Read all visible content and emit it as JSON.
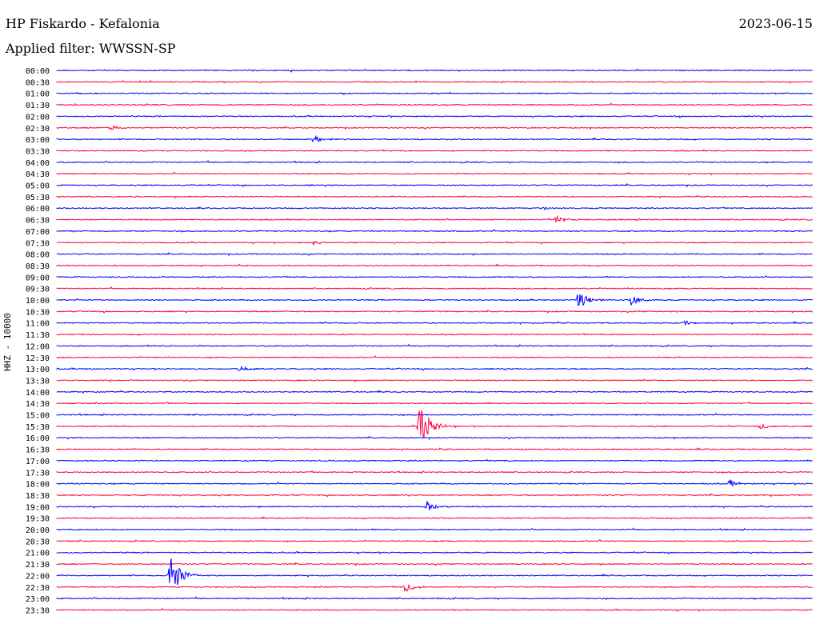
{
  "header": {
    "station": "HP Fiskardo - Kefalonia",
    "date": "2023-06-15",
    "filter": "Applied filter: WWSSN-SP"
  },
  "chart_data": {
    "type": "line",
    "title": "HP Fiskardo - Kefalonia",
    "ylabel": "HHZ - 10000",
    "line_colors": [
      "#0000ff",
      "#ff0040"
    ],
    "row_times": [
      "00:00",
      "00:30",
      "01:00",
      "01:30",
      "02:00",
      "02:30",
      "03:00",
      "03:30",
      "04:00",
      "04:30",
      "05:00",
      "05:30",
      "06:00",
      "06:30",
      "07:00",
      "07:30",
      "08:00",
      "08:30",
      "09:00",
      "09:30",
      "10:00",
      "10:30",
      "11:00",
      "11:30",
      "12:00",
      "12:30",
      "13:00",
      "13:30",
      "14:00",
      "14:30",
      "15:00",
      "15:30",
      "16:00",
      "16:30",
      "17:00",
      "17:30",
      "18:00",
      "18:30",
      "19:00",
      "19:30",
      "20:00",
      "20:30",
      "21:00",
      "21:30",
      "22:00",
      "22:30",
      "23:00",
      "23:30"
    ],
    "events": [
      {
        "row": "15:30",
        "time_frac": 0.48,
        "amplitude": 35
      },
      {
        "row": "22:00",
        "time_frac": 0.15,
        "amplitude": 35
      },
      {
        "row": "10:00",
        "time_frac": 0.69,
        "amplitude": 12
      },
      {
        "row": "10:00",
        "time_frac": 0.76,
        "amplitude": 7
      },
      {
        "row": "18:00",
        "time_frac": 0.89,
        "amplitude": 5
      },
      {
        "row": "19:00",
        "time_frac": 0.49,
        "amplitude": 7
      },
      {
        "row": "22:30",
        "time_frac": 0.46,
        "amplitude": 8
      },
      {
        "row": "13:00",
        "time_frac": 0.24,
        "amplitude": 5
      },
      {
        "row": "15:30",
        "time_frac": 0.93,
        "amplitude": 4
      },
      {
        "row": "06:30",
        "time_frac": 0.66,
        "amplitude": 5
      },
      {
        "row": "03:00",
        "time_frac": 0.34,
        "amplitude": 4
      },
      {
        "row": "02:30",
        "time_frac": 0.07,
        "amplitude": 4
      },
      {
        "row": "11:00",
        "time_frac": 0.83,
        "amplitude": 3
      },
      {
        "row": "07:30",
        "time_frac": 0.34,
        "amplitude": 3
      },
      {
        "row": "06:00",
        "time_frac": 0.64,
        "amplitude": 3
      }
    ]
  }
}
